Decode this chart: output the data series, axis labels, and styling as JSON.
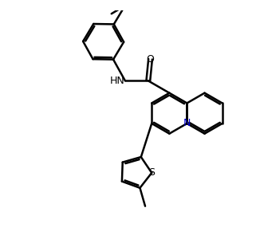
{
  "bg_color": "#ffffff",
  "bond_color": "#000000",
  "N_color": "#0000cd",
  "line_width": 1.8,
  "dbo": 0.07,
  "figsize": [
    3.26,
    3.15
  ],
  "dpi": 100,
  "xlim": [
    0.0,
    9.5
  ],
  "ylim": [
    0.5,
    9.0
  ],
  "r6": 0.75,
  "r5": 0.6
}
